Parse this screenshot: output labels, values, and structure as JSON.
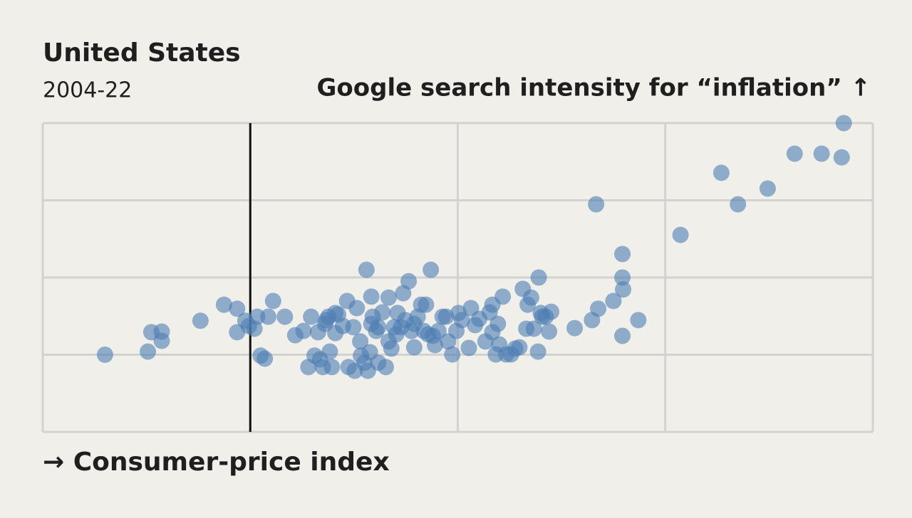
{
  "chart_data": {
    "type": "scatter",
    "title": "United States",
    "subtitle": "2004-22",
    "y_label": "Google search intensity for “inflation” ↑",
    "x_label": "→ Consumer-price index",
    "xlim": [
      -3,
      9
    ],
    "xticks": [
      -3,
      0,
      3,
      6,
      9
    ],
    "ylim": [
      0,
      100
    ],
    "yticks": [
      0,
      25,
      50,
      75,
      100
    ],
    "grid": true,
    "tick_labels": false,
    "x_zero_line": true,
    "series": [
      {
        "name": null,
        "color": "#4d7db3",
        "alpha": 0.6,
        "x": [
          -2.1,
          -1.48,
          -1.43,
          -1.28,
          -1.28,
          -0.72,
          -0.38,
          -0.19,
          -0.19,
          -0.07,
          -0.02,
          0.06,
          0.1,
          0.15,
          0.21,
          0.26,
          0.33,
          0.5,
          0.65,
          0.77,
          0.84,
          0.88,
          0.98,
          1.01,
          1.05,
          1.1,
          1.15,
          1.18,
          1.23,
          1.27,
          1.34,
          1.4,
          1.42,
          1.49,
          1.51,
          1.54,
          1.59,
          1.65,
          1.68,
          1.7,
          1.73,
          1.75,
          1.77,
          1.82,
          1.85,
          1.91,
          1.96,
          2.0,
          2.04,
          2.08,
          2.13,
          2.18,
          2.21,
          2.24,
          2.29,
          2.33,
          2.37,
          2.42,
          2.47,
          2.51,
          2.54,
          2.61,
          2.64,
          2.67,
          2.72,
          2.78,
          2.86,
          2.92,
          2.98,
          3.01,
          3.06,
          3.16,
          3.19,
          3.25,
          3.31,
          3.4,
          3.46,
          3.5,
          3.55,
          3.58,
          3.6,
          3.65,
          3.7,
          3.77,
          3.83,
          3.89,
          3.94,
          3.99,
          4.01,
          4.06,
          4.1,
          4.16,
          4.17,
          4.2,
          4.27,
          4.32,
          4.35,
          4.69,
          4.94,
          5.0,
          5.03,
          5.25,
          5.38,
          5.38,
          5.39,
          5.38,
          5.61,
          6.22,
          6.81,
          7.05,
          7.48,
          7.87,
          8.26,
          8.55,
          8.58,
          1.13,
          1.85,
          1.6,
          1.23,
          2.11,
          2.57,
          2.83,
          1.08,
          2.0,
          3.5,
          4.22,
          0.93,
          1.75,
          2.37
        ],
        "values": [
          25,
          26,
          32.3,
          32.5,
          29.5,
          36,
          41.2,
          39.9,
          32.3,
          36,
          34.3,
          33.4,
          37.3,
          24.7,
          23.7,
          37.3,
          42.4,
          37.3,
          31.3,
          32.7,
          21,
          37.3,
          32.3,
          23.5,
          21,
          36.2,
          26,
          21,
          32,
          38,
          34.3,
          42.4,
          21,
          33.9,
          19.8,
          40.1,
          29.3,
          22.4,
          52.5,
          19.8,
          25.8,
          43.8,
          37.3,
          32.7,
          33.9,
          38.7,
          21,
          43.5,
          27,
          33.9,
          38.5,
          33.9,
          44.9,
          36.2,
          48.8,
          32.7,
          27.4,
          37.3,
          41.2,
          32.7,
          41.2,
          52.5,
          31.1,
          28.1,
          32.7,
          37.3,
          29.3,
          25.1,
          32.7,
          38.5,
          36.2,
          27.2,
          40.1,
          34.6,
          36.6,
          29.3,
          38.7,
          41.2,
          25.1,
          35,
          28.3,
          43.8,
          25.1,
          25.1,
          27,
          27.4,
          46.3,
          33.4,
          41.2,
          43.5,
          33.4,
          26,
          50,
          38.5,
          37.3,
          32.5,
          38.9,
          33.6,
          36.2,
          73.7,
          39.9,
          42.4,
          57.6,
          50,
          46.1,
          31.1,
          36.2,
          63.8,
          83.9,
          73.7,
          78.8,
          90.1,
          90.1,
          88.9,
          100,
          37.3,
          22.4,
          24.7,
          38.5,
          31.6,
          31.6,
          37.3,
          35,
          29.3,
          32.3,
          37.3,
          24.7,
          35,
          35
        ]
      }
    ]
  }
}
